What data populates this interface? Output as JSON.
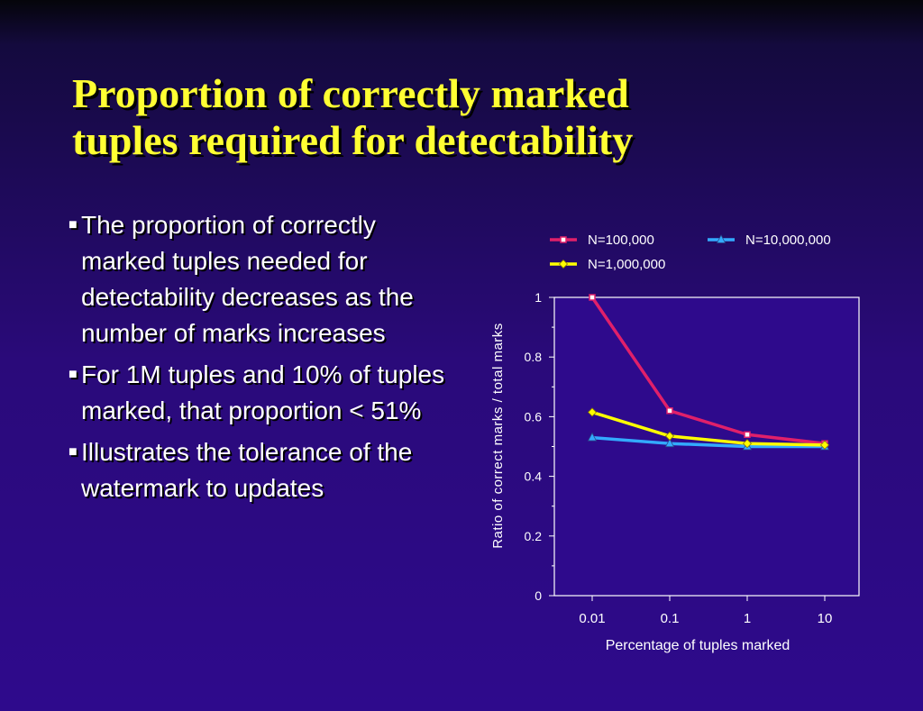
{
  "slide": {
    "title_line1": "Proportion of correctly marked",
    "title_line2": "tuples required for detectability",
    "bullets": [
      "The proportion of correctly marked tuples needed for detectability decreases as the number of marks increases",
      "For 1M tuples and 10% of tuples marked, that proportion < 51%",
      "Illustrates the tolerance of the watermark to updates"
    ]
  },
  "colors": {
    "title": "#ffff33",
    "plot_bg": "#2e0a8c"
  },
  "chart_data": {
    "type": "line",
    "categories": [
      "0.01",
      "0.1",
      "1",
      "10"
    ],
    "xlabel": "Percentage of tuples marked",
    "ylabel": "Ratio of correct marks / total marks",
    "ylim": [
      0,
      1
    ],
    "yticks": [
      "0",
      "0.2",
      "0.4",
      "0.6",
      "0.8",
      "1"
    ],
    "legend_position": "top",
    "series": [
      {
        "name": "N=100,000",
        "color": "#e0206a",
        "marker": "square",
        "values": [
          1.0,
          0.62,
          0.54,
          0.51
        ]
      },
      {
        "name": "N=10,000,000",
        "color": "#33aaff",
        "marker": "triangle",
        "values": [
          0.53,
          0.51,
          0.5,
          0.5
        ]
      },
      {
        "name": "N=1,000,000",
        "color": "#ffff00",
        "marker": "diamond",
        "values": [
          0.615,
          0.535,
          0.51,
          0.505
        ]
      }
    ]
  }
}
